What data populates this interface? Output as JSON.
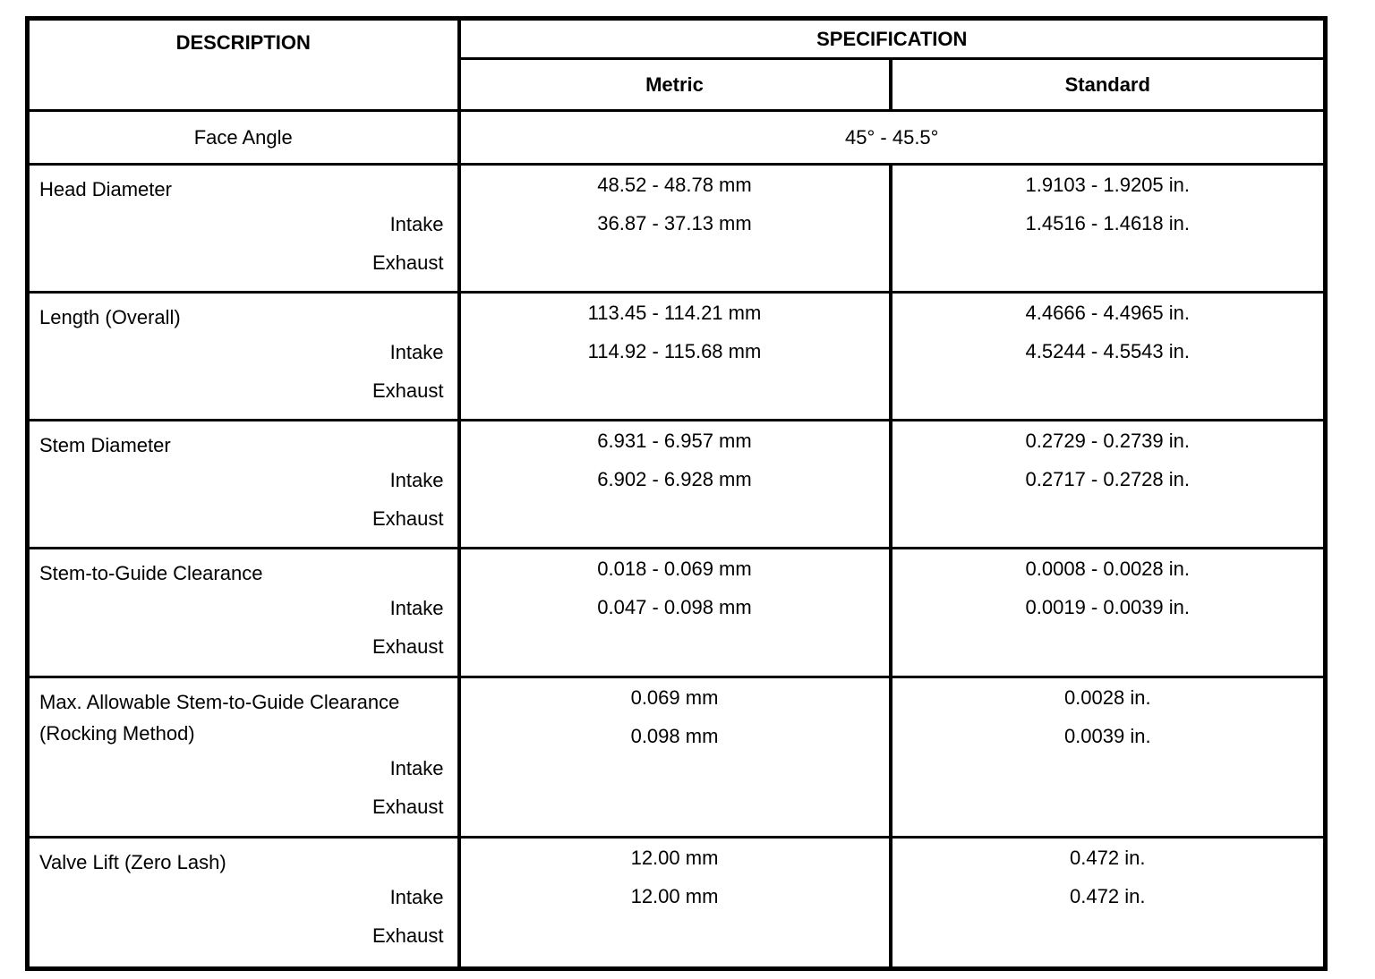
{
  "table": {
    "header": {
      "description": "DESCRIPTION",
      "specification": "SPECIFICATION",
      "metric": "Metric",
      "standard": "Standard"
    },
    "face_angle": {
      "label": "Face Angle",
      "value": "45° - 45.5°"
    },
    "sections": [
      {
        "label": "Head Diameter",
        "rows": [
          {
            "item": "Intake",
            "metric": "48.52 - 48.78 mm",
            "standard": "1.9103 - 1.9205 in."
          },
          {
            "item": "Exhaust",
            "metric": "36.87 - 37.13 mm",
            "standard": "1.4516 - 1.4618 in."
          }
        ]
      },
      {
        "label": "Length (Overall)",
        "rows": [
          {
            "item": "Intake",
            "metric": "113.45 - 114.21 mm",
            "standard": "4.4666 - 4.4965 in."
          },
          {
            "item": "Exhaust",
            "metric": "114.92 - 115.68 mm",
            "standard": "4.5244 - 4.5543 in."
          }
        ]
      },
      {
        "label": "Stem Diameter",
        "rows": [
          {
            "item": "Intake",
            "metric": "6.931 - 6.957 mm",
            "standard": "0.2729 - 0.2739 in."
          },
          {
            "item": "Exhaust",
            "metric": "6.902 - 6.928 mm",
            "standard": "0.2717 - 0.2728 in."
          }
        ]
      },
      {
        "label": "Stem-to-Guide Clearance",
        "rows": [
          {
            "item": "Intake",
            "metric": "0.018 - 0.069 mm",
            "standard": "0.0008 - 0.0028 in."
          },
          {
            "item": "Exhaust",
            "metric": "0.047 - 0.098 mm",
            "standard": "0.0019 - 0.0039 in."
          }
        ]
      },
      {
        "label": "Max. Allowable Stem-to-Guide Clearance (Rocking Method)",
        "rows": [
          {
            "item": "Intake",
            "metric": "0.069 mm",
            "standard": "0.0028 in."
          },
          {
            "item": "Exhaust",
            "metric": "0.098 mm",
            "standard": "0.0039 in."
          }
        ]
      },
      {
        "label": "Valve Lift (Zero Lash)",
        "rows": [
          {
            "item": "Intake",
            "metric": "12.00 mm",
            "standard": "0.472 in."
          },
          {
            "item": "Exhaust",
            "metric": "12.00 mm",
            "standard": "0.472 in."
          }
        ]
      }
    ]
  }
}
